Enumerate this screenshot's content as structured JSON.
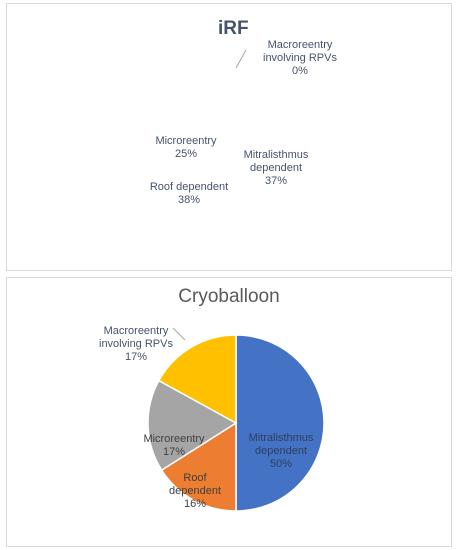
{
  "chart_data": [
    {
      "type": "pie",
      "title": "iRF",
      "slices": [
        {
          "label": "Macroreentry involving RPVs",
          "value": 0,
          "pct_label": "0%"
        },
        {
          "label": "Mitralisthmus dependent",
          "value": 37,
          "pct_label": "37%"
        },
        {
          "label": "Roof dependent",
          "value": 38,
          "pct_label": "38%"
        },
        {
          "label": "Microreentry",
          "value": 25,
          "pct_label": "25%"
        }
      ],
      "note": "pie slices not rendered; only labels visible"
    },
    {
      "type": "pie",
      "title": "Cryoballoon",
      "slices": [
        {
          "label": "Mitralisthmus dependent",
          "value": 50,
          "pct_label": "50%",
          "color": "#4472c4"
        },
        {
          "label": "Roof dependent",
          "value": 16,
          "pct_label": "16%",
          "color": "#ed7d31"
        },
        {
          "label": "Microreentry",
          "value": 17,
          "pct_label": "17%",
          "color": "#a5a5a5"
        },
        {
          "label": "Macroreentry involving RPVs",
          "value": 17,
          "pct_label": "17%",
          "color": "#ffc000"
        }
      ]
    }
  ]
}
